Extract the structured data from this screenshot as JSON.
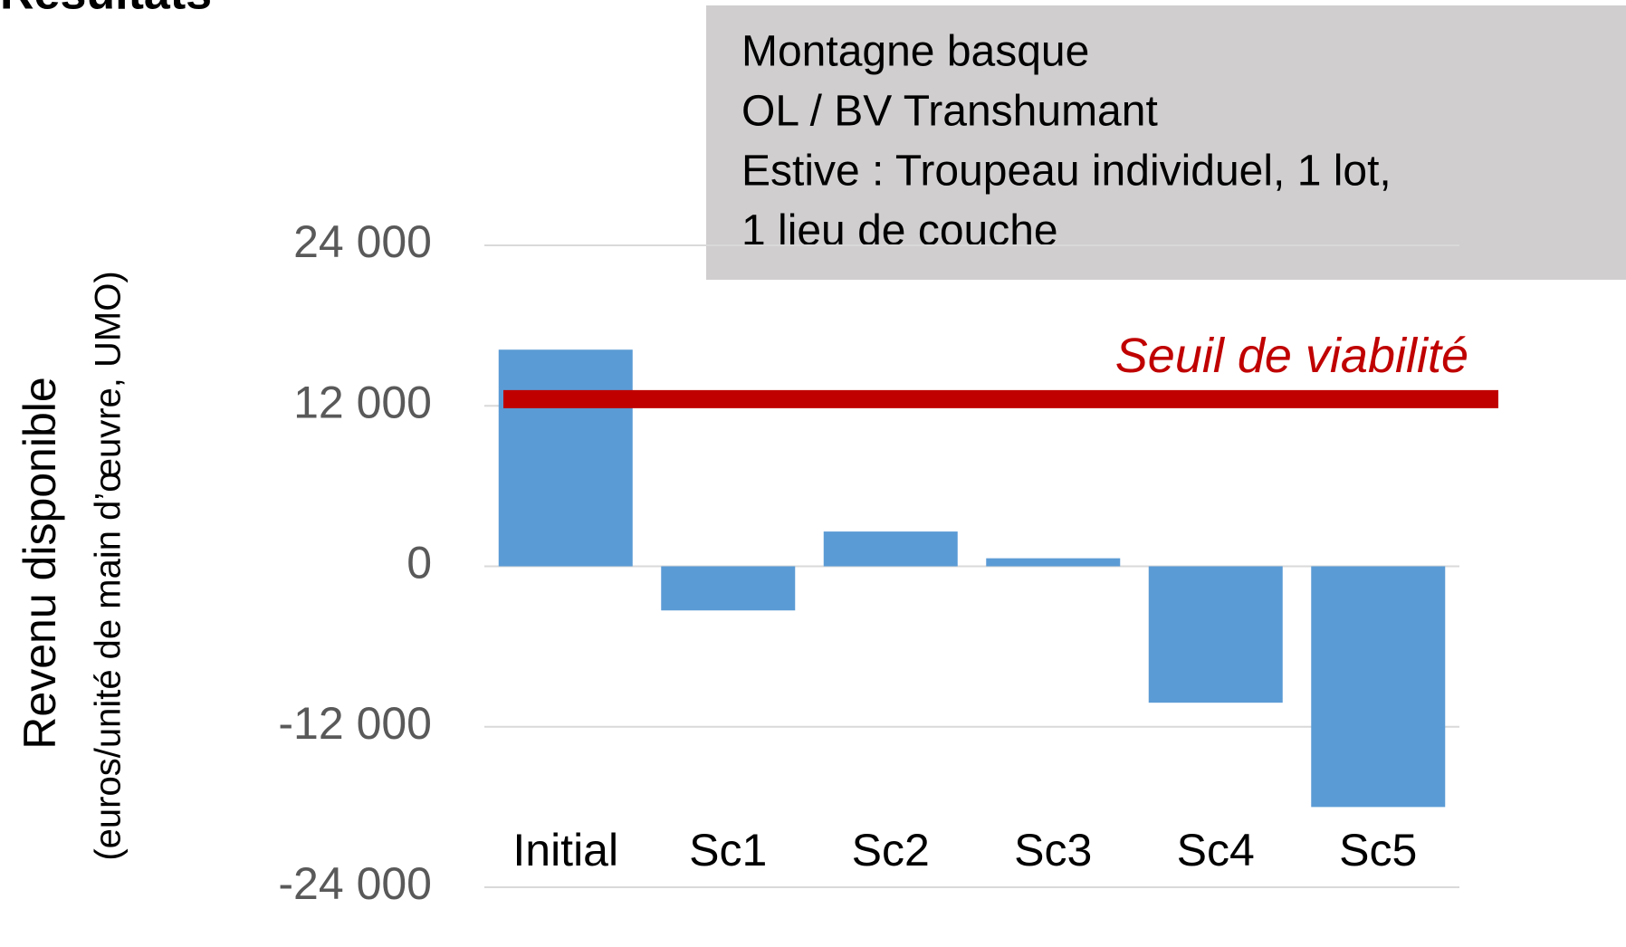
{
  "chart_data": {
    "type": "bar",
    "title": "Résultats",
    "y_label": "Revenu disponible",
    "y_sublabel": "(euros/unité de main d’œuvre, UMO)",
    "info_box": [
      "Montagne basque",
      "OL / BV Transhumant",
      "Estive : Troupeau individuel, 1 lot,",
      "1 lieu de couche"
    ],
    "categories": [
      "Initial",
      "Sc1",
      "Sc2",
      "Sc3",
      "Sc4",
      "Sc5"
    ],
    "values": [
      16200,
      -3300,
      2600,
      600,
      -10200,
      -18000
    ],
    "color": "#5b9bd5",
    "threshold": {
      "label": "Seuil de viabilité",
      "value": 12500,
      "color": "#c00000"
    },
    "ylim": [
      -24000,
      24000
    ],
    "yticks": [
      {
        "value": -24000,
        "label": "-24 000"
      },
      {
        "value": -12000,
        "label": "-12 000"
      },
      0,
      {
        "value": 12000,
        "label": "12 000"
      },
      {
        "value": 24000,
        "label": "24 000"
      }
    ],
    "grid": true
  }
}
